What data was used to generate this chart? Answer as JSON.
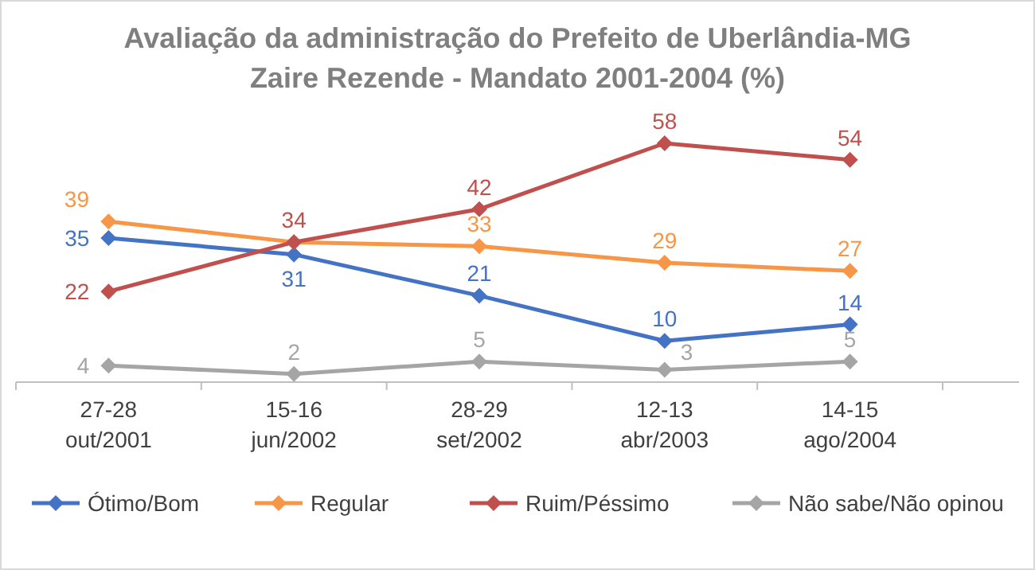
{
  "chart_data": {
    "type": "line",
    "title": "Avaliação da administração do Prefeito de Uberlândia-MG\nZaire Rezende - Mandato 2001-2004 (%)",
    "categories": [
      "27-28\nout/2001",
      "15-16\njun/2002",
      "28-29\nset/2002",
      "12-13\nabr/2003",
      "14-15\nago/2004"
    ],
    "series": [
      {
        "name": "Ótimo/Bom",
        "color": "#4472c4",
        "values": [
          35,
          31,
          21,
          10,
          14
        ]
      },
      {
        "name": "Regular",
        "color": "#f79646",
        "values": [
          39,
          34,
          33,
          29,
          27
        ],
        "value_labels": [
          "39",
          null,
          "33",
          "29",
          "27"
        ]
      },
      {
        "name": "Ruim/Péssimo",
        "color": "#c0504d",
        "values": [
          22,
          34,
          42,
          58,
          54
        ]
      },
      {
        "name": "Não sabe/Não opinou",
        "color": "#a5a5a5",
        "values": [
          4,
          2,
          5,
          3,
          5
        ]
      }
    ],
    "tick_labels": "x",
    "data_labels": true,
    "legend": "bottom",
    "marker": "diamond"
  }
}
